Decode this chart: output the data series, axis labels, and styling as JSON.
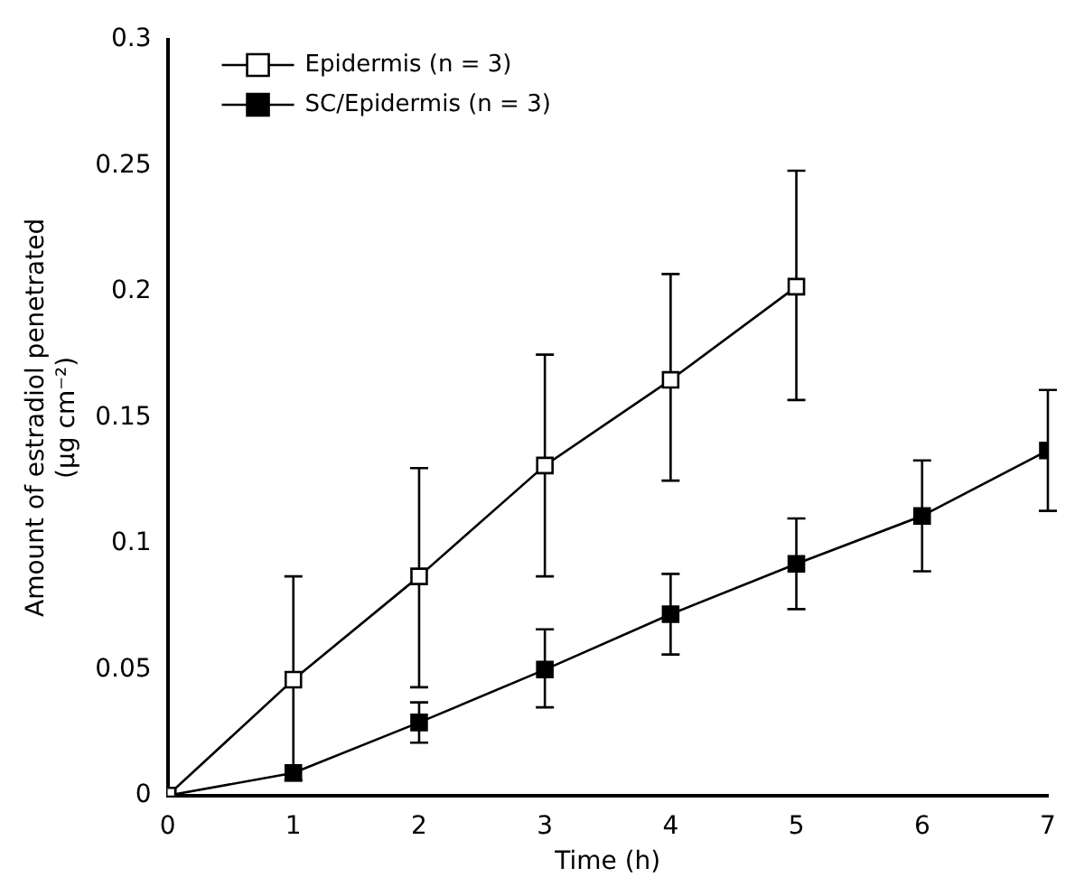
{
  "chart_data": {
    "type": "line",
    "xlabel": "Time (h)",
    "ylabel": "Amount of estradiol penetrated\n(μg cm⁻²)",
    "xlim": [
      0,
      7
    ],
    "xticks": [
      0,
      1,
      2,
      3,
      4,
      5,
      6,
      7
    ],
    "ylim": [
      0,
      0.3
    ],
    "yticks": [
      0,
      0.05,
      0.1,
      0.15,
      0.2,
      0.25,
      0.3
    ],
    "grid": false,
    "legend": "top left",
    "marker": "square",
    "line_style": "solid",
    "series": [
      {
        "name": "Epidermis (n = 3)",
        "color": "#ffffff",
        "x": [
          0,
          1,
          2,
          3,
          4,
          5
        ],
        "values": [
          0,
          0.046,
          0.087,
          0.131,
          0.165,
          0.202
        ],
        "errors": [
          null,
          [
            0.006,
            0.087
          ],
          [
            0.043,
            0.13
          ],
          [
            0.087,
            0.175
          ],
          [
            0.125,
            0.207
          ],
          [
            0.157,
            0.248
          ]
        ]
      },
      {
        "name": "SC/Epidermis (n = 3)",
        "color": "#000000",
        "x": [
          0,
          1,
          2,
          3,
          4,
          5,
          6,
          7
        ],
        "values": [
          0,
          0.009,
          0.029,
          0.05,
          0.072,
          0.092,
          0.111,
          0.137
        ],
        "errors": [
          null,
          null,
          [
            0.021,
            0.037
          ],
          [
            0.035,
            0.066
          ],
          [
            0.056,
            0.088
          ],
          [
            0.074,
            0.11
          ],
          [
            0.089,
            0.133
          ],
          [
            0.113,
            0.161
          ]
        ]
      }
    ]
  }
}
